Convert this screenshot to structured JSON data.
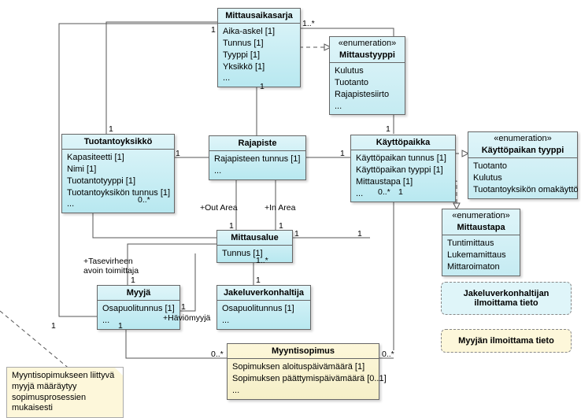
{
  "classes": {
    "mittausaikasarja": {
      "title": "Mittausaikasarja",
      "attrs": [
        "Aika-askel [1]",
        "Tunnus [1]",
        "Tyyppi [1]",
        "Yksikkö [1]",
        "..."
      ]
    },
    "mittaustyyppi": {
      "stereo": "«enumeration»",
      "title": "Mittaustyyppi",
      "attrs": [
        "Kulutus",
        "Tuotanto",
        "Rajapistesiirto",
        "..."
      ]
    },
    "tuotantoyksikko": {
      "title": "Tuotantoyksikkö",
      "attrs": [
        "Kapasiteetti [1]",
        "Nimi [1]",
        "Tuotantotyyppi [1]",
        "Tuotantoyksikön tunnus [1]",
        "..."
      ]
    },
    "rajapiste": {
      "title": "Rajapiste",
      "attrs": [
        "Rajapisteen tunnus [1]",
        "..."
      ]
    },
    "kayttopaikka": {
      "title": "Käyttöpaikka",
      "attrs": [
        "Käyttöpaikan tunnus [1]",
        "Käyttöpaikan tyyppi [1]",
        "Mittaustapa [1]",
        "..."
      ]
    },
    "kayttopaikan_tyyppi": {
      "stereo": "«enumeration»",
      "title": "Käyttöpaikan tyyppi",
      "attrs": [
        "Tuotanto",
        "Kulutus",
        "Tuotantoyksikön omakäyttö"
      ]
    },
    "mittaustapa": {
      "stereo": "«enumeration»",
      "title": "Mittaustapa",
      "attrs": [
        "Tuntimittaus",
        "Lukemamittaus",
        "Mittaroimaton"
      ]
    },
    "mittausalue": {
      "title": "Mittausalue",
      "attrs": [
        "Tunnus [1]"
      ]
    },
    "myyja": {
      "title": "Myyjä",
      "attrs": [
        "Osapuolitunnus [1]",
        "..."
      ]
    },
    "jakeluverkonhaltija": {
      "title": "Jakeluverkonhaltija",
      "attrs": [
        "Osapuolitunnus [1]",
        "..."
      ]
    },
    "myyntisopimus": {
      "title": "Myyntisopimus",
      "attrs": [
        "Sopimuksen aloituspäivämäärä [1]",
        "Sopimuksen päättymispäivämäärä [0..1]",
        "..."
      ]
    }
  },
  "legends": {
    "jvh": "Jakeluverkonhaltijan ilmoittama tieto",
    "myyja": "Myyjän ilmoittama tieto"
  },
  "note": "Myyntisopimukseen liittyvä myyjä määräytyy sopimusprosessien mukaisesti",
  "labels": {
    "outarea": "+Out Area",
    "inarea": "+In Area",
    "tasevirhe": "+Tasevirheen\navoin toimittaja",
    "haviomyyja": "+Häviömyyjä",
    "m1": "1",
    "ms": "1..*",
    "m0s": "0..*"
  }
}
